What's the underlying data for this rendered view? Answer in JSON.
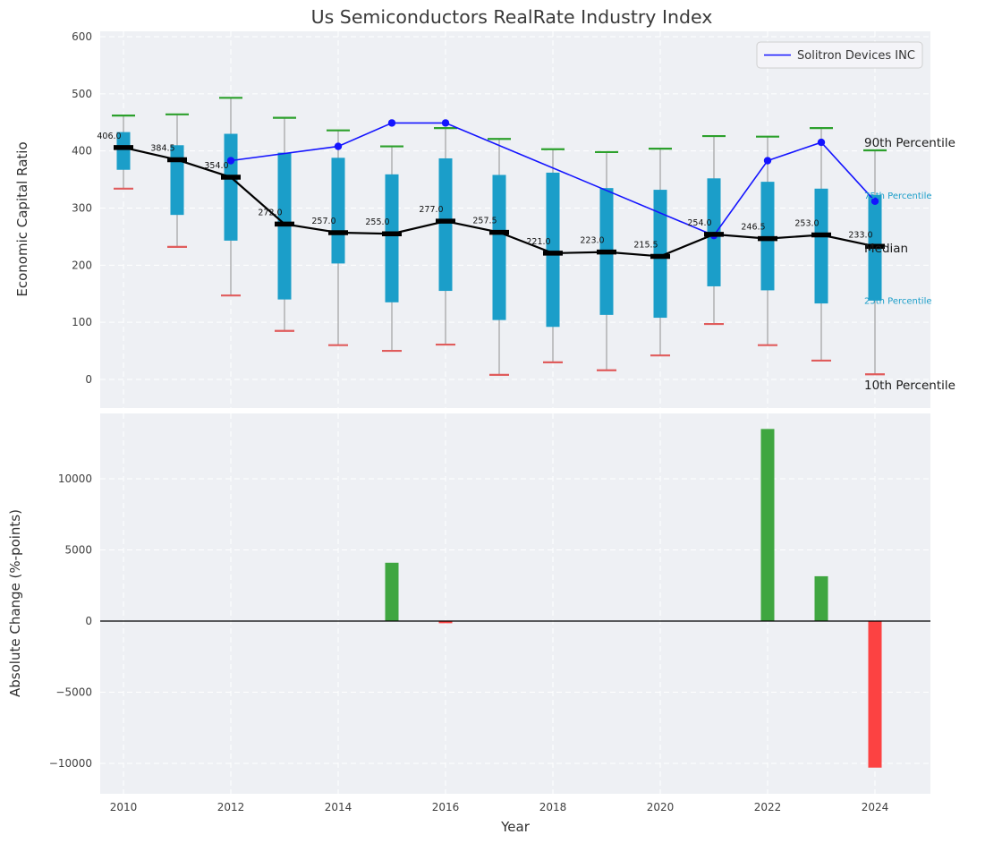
{
  "title": "Us Semiconductors RealRate Industry Index",
  "colors": {
    "figure_bg": "#ffffff",
    "plot_bg": "#eef0f4",
    "grid": "#ffffff",
    "box": "#1b9ec9",
    "cap_top": "#2ca02c",
    "cap_bottom": "#e05c5c",
    "whisker": "#a0a0a0",
    "median": "#000000",
    "series": "#1414ff",
    "bar_positive": "#3fa640",
    "bar_negative": "#fc4242",
    "tick_text": "#404040",
    "label_text": "#303030",
    "title_text": "#3a3a3a",
    "percentile_label": "#1b9ec9"
  },
  "chart_data": [
    {
      "type": "boxplot",
      "title": "Us Semiconductors RealRate Industry Index",
      "ylabel": "Economic Capital Ratio",
      "ylim": [
        -50,
        610
      ],
      "yticks": [
        0,
        100,
        200,
        300,
        400,
        500,
        600
      ],
      "xticks": [
        2010,
        2012,
        2014,
        2016,
        2018,
        2020,
        2022,
        2024
      ],
      "years": [
        2010,
        2011,
        2012,
        2013,
        2014,
        2015,
        2016,
        2017,
        2018,
        2019,
        2020,
        2021,
        2022,
        2023,
        2024
      ],
      "p90": [
        462,
        464,
        493,
        458,
        436,
        408,
        440,
        421,
        403,
        398,
        404,
        426,
        425,
        440,
        401
      ],
      "p75": [
        433,
        410,
        430,
        397,
        388,
        359,
        387,
        358,
        362,
        335,
        332,
        352,
        346,
        334,
        323
      ],
      "median": [
        406,
        384.5,
        354,
        272,
        257,
        255,
        277,
        257.5,
        221,
        223,
        215.5,
        254,
        246.5,
        253,
        233
      ],
      "median_labels": [
        "406.0",
        "384.5",
        "354.0",
        "272.0",
        "257.0",
        "255.0",
        "277.0",
        "257.5",
        "221.0",
        "223.0",
        "215.5",
        "254.0",
        "246.5",
        "253.0",
        "233.0"
      ],
      "p25": [
        367,
        288,
        243,
        140,
        203,
        135,
        155,
        104,
        92,
        113,
        108,
        163,
        156,
        133,
        138
      ],
      "p10": [
        334,
        232,
        147,
        85,
        60,
        50,
        61,
        8,
        30,
        16,
        42,
        97,
        60,
        33,
        9
      ],
      "series": [
        {
          "name": "Solitron Devices INC",
          "x": [
            2012,
            2014,
            2015,
            2016,
            2021,
            2022,
            2023,
            2024
          ],
          "y": [
            383,
            408,
            449,
            449,
            252,
            383,
            415,
            312
          ]
        }
      ],
      "legend": {
        "label": "Solitron Devices INC",
        "position": "upper right"
      },
      "annotations": [
        {
          "text": "90th Percentile",
          "value": 415,
          "style": "dark",
          "size": 13.5
        },
        {
          "text": "75th Percentile",
          "value": 322,
          "style": "accent",
          "size": 10
        },
        {
          "text": "Median",
          "value": 230,
          "style": "dark",
          "size": 13.5
        },
        {
          "text": "25th Percentile",
          "value": 138,
          "style": "accent",
          "size": 10
        },
        {
          "text": "10th Percentile",
          "value": -10,
          "style": "dark",
          "size": 13.5
        }
      ]
    },
    {
      "type": "bar",
      "ylabel": "Absolute Change (%-points)",
      "xlabel": "Year",
      "ylim": [
        -12200,
        14700
      ],
      "yticks": [
        -10000,
        -5000,
        0,
        5000,
        10000
      ],
      "xticks": [
        2010,
        2012,
        2014,
        2016,
        2018,
        2020,
        2022,
        2024
      ],
      "categories": [
        2010,
        2011,
        2012,
        2013,
        2014,
        2015,
        2016,
        2017,
        2018,
        2019,
        2020,
        2021,
        2022,
        2023,
        2024
      ],
      "values": [
        null,
        null,
        null,
        null,
        null,
        4100,
        -150,
        null,
        null,
        null,
        null,
        null,
        13500,
        3150,
        -10300
      ]
    }
  ]
}
